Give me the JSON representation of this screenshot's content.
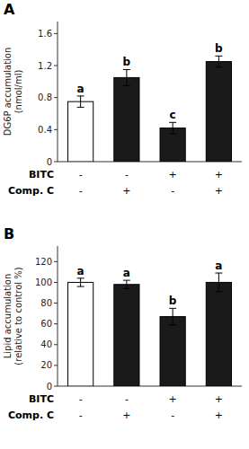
{
  "chart_data": [
    {
      "type": "bar",
      "title": "A",
      "y_label": "DG6P accumulation\n(nmol/ml)",
      "values": [
        0.75,
        1.05,
        0.42,
        1.25
      ],
      "errors": [
        0.07,
        0.1,
        0.07,
        0.07
      ],
      "colors": [
        "#ffffff",
        "#1a1a1a",
        "#1a1a1a",
        "#1a1a1a"
      ],
      "annotations": [
        "a",
        "b",
        "c",
        "b"
      ],
      "treatments": [
        {
          "name": "BITC",
          "labels": [
            "-",
            "-",
            "+",
            "+"
          ]
        },
        {
          "name": "Comp. C",
          "labels": [
            "-",
            "+",
            "-",
            "+"
          ]
        }
      ],
      "ylim": [
        0,
        1.75
      ],
      "yticks": [
        0,
        0.4,
        0.8,
        1.2,
        1.6
      ]
    },
    {
      "type": "bar",
      "title": "B",
      "y_label": "Lipid accumulation\n(relative to control %)",
      "values": [
        100,
        98,
        67,
        100
      ],
      "errors": [
        4,
        4,
        8,
        9
      ],
      "colors": [
        "#ffffff",
        "#1a1a1a",
        "#1a1a1a",
        "#1a1a1a"
      ],
      "annotations": [
        "a",
        "a",
        "b",
        "a"
      ],
      "treatments": [
        {
          "name": "BITC",
          "labels": [
            "-",
            "-",
            "+",
            "+"
          ]
        },
        {
          "name": "Comp. C",
          "labels": [
            "-",
            "+",
            "-",
            "+"
          ]
        }
      ],
      "ylim": [
        0,
        135
      ],
      "yticks": [
        0,
        20,
        40,
        60,
        80,
        100,
        120
      ]
    }
  ]
}
